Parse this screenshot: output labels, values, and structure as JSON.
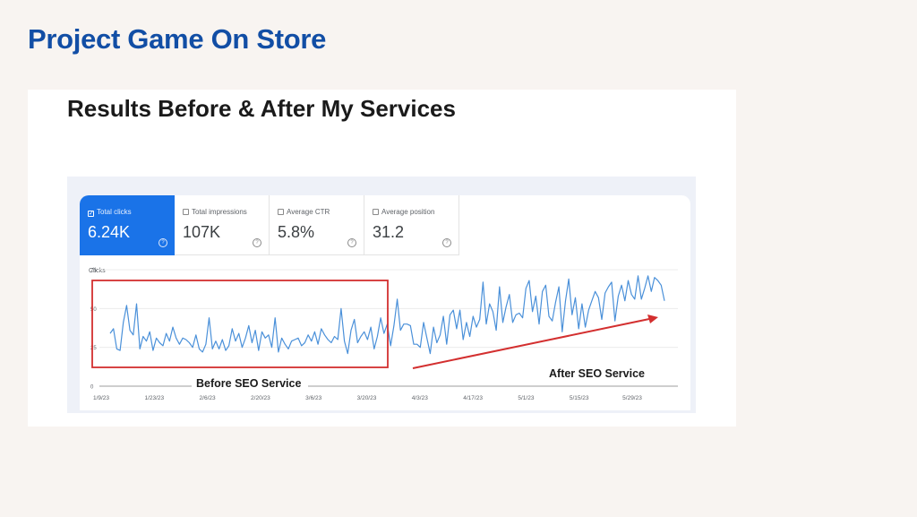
{
  "page_title": "Project Game On Store",
  "panel_heading": "Results Before & After My Services",
  "metrics": [
    {
      "label": "Total clicks",
      "value": "6.24K",
      "active": true
    },
    {
      "label": "Total impressions",
      "value": "107K",
      "active": false
    },
    {
      "label": "Average CTR",
      "value": "5.8%",
      "active": false
    },
    {
      "label": "Average position",
      "value": "31.2",
      "active": false
    }
  ],
  "colors": {
    "title": "#124ea5",
    "line": "#4a90d9",
    "annotation": "#d32f2f",
    "active_metric": "#1a73e8"
  },
  "chart_data": {
    "type": "line",
    "title": "",
    "ylabel": "Clicks",
    "ylim": [
      0,
      75
    ],
    "y_ticks": [
      0,
      25,
      50,
      75
    ],
    "y_tick_labels": [
      "0",
      "25",
      "50",
      "75"
    ],
    "x_tick_labels": [
      "1/9/23",
      "1/23/23",
      "2/6/23",
      "2/20/23",
      "3/6/23",
      "3/20/23",
      "4/3/23",
      "4/17/23",
      "5/1/23",
      "5/15/23",
      "5/29/23"
    ],
    "x_range": [
      "1/9/23",
      "6/2/23"
    ],
    "grid": "y",
    "series": [
      {
        "name": "Total clicks",
        "values": [
          34,
          37,
          24,
          23,
          41,
          52,
          36,
          33,
          53,
          24,
          32,
          29,
          35,
          23,
          31,
          28,
          26,
          34,
          29,
          38,
          31,
          27,
          31,
          30,
          28,
          25,
          33,
          24,
          22,
          27,
          44,
          24,
          29,
          24,
          30,
          23,
          26,
          37,
          29,
          34,
          25,
          31,
          39,
          28,
          36,
          23,
          35,
          31,
          33,
          25,
          44,
          22,
          31,
          27,
          24,
          29,
          30,
          31,
          26,
          28,
          33,
          29,
          35,
          27,
          37,
          33,
          30,
          28,
          32,
          30,
          50,
          29,
          21,
          36,
          43,
          28,
          32,
          35,
          30,
          38,
          24,
          32,
          44,
          34,
          40,
          26,
          39,
          56,
          36,
          40,
          40,
          39,
          27,
          27,
          25,
          41,
          31,
          21,
          38,
          28,
          33,
          45,
          27,
          46,
          49,
          37,
          49,
          30,
          41,
          32,
          45,
          38,
          43,
          67,
          40,
          53,
          48,
          36,
          64,
          41,
          51,
          59,
          41,
          46,
          47,
          44,
          63,
          68,
          48,
          58,
          40,
          61,
          65,
          45,
          42,
          54,
          64,
          35,
          55,
          69,
          46,
          57,
          37,
          53,
          38,
          49,
          55,
          61,
          57,
          43,
          60,
          64,
          67,
          42,
          58,
          65,
          55,
          68,
          59,
          56,
          71,
          56,
          63,
          71,
          61,
          70,
          68,
          65,
          55
        ]
      }
    ],
    "annotations": [
      {
        "label": "Before SEO Service",
        "range": [
          "1/9/23",
          "3/30/23"
        ]
      },
      {
        "label": "After SEO Service",
        "arrow_from": "4/4/23",
        "arrow_to": "5/31/23"
      }
    ]
  }
}
